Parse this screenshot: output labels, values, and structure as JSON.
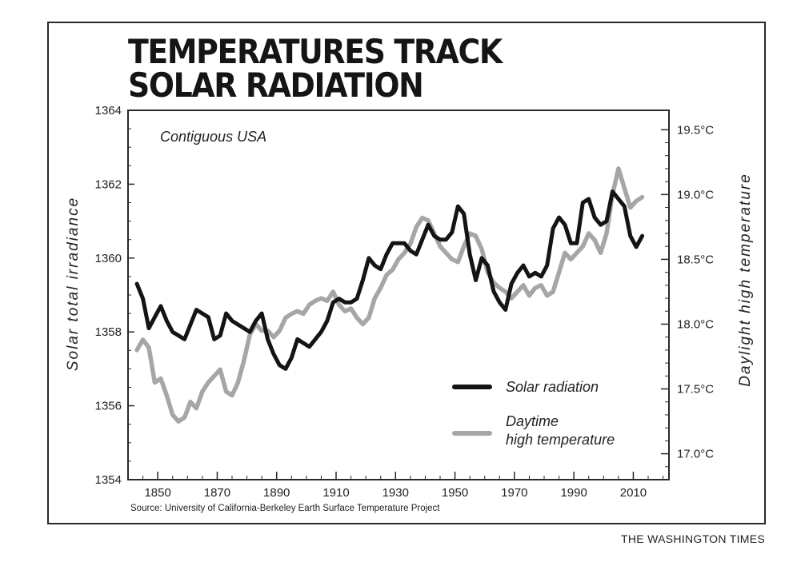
{
  "title_lines": [
    "TEMPERATURES TRACK",
    "SOLAR RADIATION"
  ],
  "source": "Source: University of California-Berkeley Earth Surface Temperature Project",
  "credit": "THE WASHINGTON TIMES",
  "colors": {
    "solar": "#141414",
    "temperature": "#a6a6a6",
    "frame": "#2a2a2a"
  },
  "chart_data": {
    "type": "line",
    "annotation": "Contiguous USA",
    "xlabel": "",
    "ylabel": "Solar total irradiance",
    "y2label": "Daylight high temperature",
    "xlim": [
      1840,
      2022
    ],
    "ylim": [
      1354,
      1364
    ],
    "y2lim": [
      16.8,
      19.65
    ],
    "x_ticks": [
      1850,
      1870,
      1890,
      1910,
      1930,
      1950,
      1970,
      1990,
      2010
    ],
    "y_ticks": [
      1354,
      1356,
      1358,
      1360,
      1362,
      1364
    ],
    "y2_ticks": [
      17.0,
      17.5,
      18.0,
      18.5,
      19.0,
      19.5
    ],
    "x_tick_labels": [
      "1850",
      "1870",
      "1890",
      "1910",
      "1930",
      "1950",
      "1970",
      "1990",
      "2010"
    ],
    "y_tick_labels": [
      "1354",
      "1356",
      "1358",
      "1360",
      "1362",
      "1364"
    ],
    "y2_tick_labels": [
      "17.0°C",
      "17.5°C",
      "18.0°C",
      "18.5°C",
      "19.0°C",
      "19.5°C"
    ],
    "legend_position": "lower-right",
    "grid": false,
    "series": [
      {
        "name": "Solar radiation",
        "axis": "left",
        "x": [
          1843,
          1845,
          1847,
          1849,
          1851,
          1853,
          1855,
          1857,
          1859,
          1861,
          1863,
          1865,
          1867,
          1869,
          1871,
          1873,
          1875,
          1877,
          1879,
          1881,
          1883,
          1885,
          1887,
          1889,
          1891,
          1893,
          1895,
          1897,
          1899,
          1901,
          1903,
          1905,
          1907,
          1909,
          1911,
          1913,
          1915,
          1917,
          1919,
          1921,
          1923,
          1925,
          1927,
          1929,
          1931,
          1933,
          1935,
          1937,
          1939,
          1941,
          1943,
          1945,
          1947,
          1949,
          1951,
          1953,
          1955,
          1957,
          1959,
          1961,
          1963,
          1965,
          1967,
          1969,
          1971,
          1973,
          1975,
          1977,
          1979,
          1981,
          1983,
          1985,
          1987,
          1989,
          1991,
          1993,
          1995,
          1997,
          1999,
          2001,
          2003,
          2005,
          2007,
          2009,
          2011,
          2013
        ],
        "values": [
          1359.3,
          1358.9,
          1358.1,
          1358.4,
          1358.7,
          1358.3,
          1358.0,
          1357.9,
          1357.8,
          1358.2,
          1358.6,
          1358.5,
          1358.4,
          1357.8,
          1357.9,
          1358.5,
          1358.3,
          1358.2,
          1358.1,
          1358.0,
          1358.3,
          1358.5,
          1357.8,
          1357.4,
          1357.1,
          1357.0,
          1357.3,
          1357.8,
          1357.7,
          1357.6,
          1357.8,
          1358.0,
          1358.3,
          1358.8,
          1358.9,
          1358.8,
          1358.8,
          1358.9,
          1359.4,
          1360.0,
          1359.8,
          1359.7,
          1360.1,
          1360.4,
          1360.4,
          1360.4,
          1360.2,
          1360.1,
          1360.5,
          1360.9,
          1360.6,
          1360.5,
          1360.5,
          1360.7,
          1361.4,
          1361.2,
          1360.1,
          1359.4,
          1360.0,
          1359.8,
          1359.1,
          1358.8,
          1358.6,
          1359.3,
          1359.6,
          1359.8,
          1359.5,
          1359.6,
          1359.5,
          1359.8,
          1360.8,
          1361.1,
          1360.9,
          1360.4,
          1360.4,
          1361.5,
          1361.6,
          1361.1,
          1360.9,
          1361.0,
          1361.8,
          1361.6,
          1361.4,
          1360.6,
          1360.3,
          1360.6
        ]
      },
      {
        "name": "Daytime high temperature",
        "axis": "right",
        "x": [
          1843,
          1845,
          1847,
          1849,
          1851,
          1853,
          1855,
          1857,
          1859,
          1861,
          1863,
          1865,
          1867,
          1869,
          1871,
          1873,
          1875,
          1877,
          1879,
          1881,
          1883,
          1885,
          1887,
          1889,
          1891,
          1893,
          1895,
          1897,
          1899,
          1901,
          1903,
          1905,
          1907,
          1909,
          1911,
          1913,
          1915,
          1917,
          1919,
          1921,
          1923,
          1925,
          1927,
          1929,
          1931,
          1933,
          1935,
          1937,
          1939,
          1941,
          1943,
          1945,
          1947,
          1949,
          1951,
          1953,
          1955,
          1957,
          1959,
          1961,
          1963,
          1965,
          1967,
          1969,
          1971,
          1973,
          1975,
          1977,
          1979,
          1981,
          1983,
          1985,
          1987,
          1989,
          1991,
          1993,
          1995,
          1997,
          1999,
          2001,
          2003,
          2005,
          2007,
          2009,
          2011,
          2013
        ],
        "values": [
          17.8,
          17.88,
          17.82,
          17.55,
          17.58,
          17.45,
          17.3,
          17.25,
          17.28,
          17.4,
          17.35,
          17.48,
          17.55,
          17.6,
          17.65,
          17.48,
          17.45,
          17.55,
          17.72,
          17.92,
          18.0,
          17.95,
          17.95,
          17.9,
          17.95,
          18.05,
          18.08,
          18.1,
          18.08,
          18.15,
          18.18,
          18.2,
          18.18,
          18.25,
          18.15,
          18.1,
          18.12,
          18.05,
          18.0,
          18.05,
          18.2,
          18.28,
          18.38,
          18.42,
          18.5,
          18.55,
          18.62,
          18.75,
          18.82,
          18.8,
          18.7,
          18.6,
          18.55,
          18.5,
          18.48,
          18.6,
          18.7,
          18.68,
          18.58,
          18.4,
          18.32,
          18.28,
          18.25,
          18.2,
          18.25,
          18.3,
          18.22,
          18.28,
          18.3,
          18.22,
          18.25,
          18.4,
          18.55,
          18.5,
          18.55,
          18.6,
          18.7,
          18.65,
          18.55,
          18.7,
          19.0,
          19.2,
          19.05,
          18.9,
          18.95,
          18.98
        ]
      }
    ]
  },
  "legend": {
    "solar": "Solar radiation",
    "temp_line1": "Daytime",
    "temp_line2": "high temperature"
  }
}
